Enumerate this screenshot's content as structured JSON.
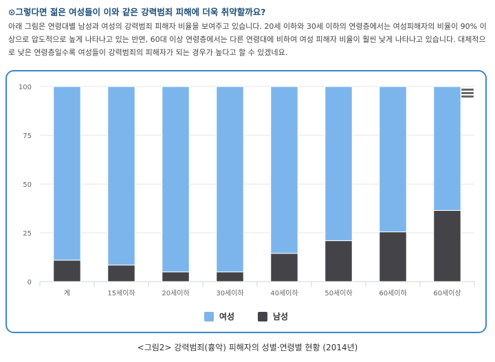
{
  "heading": "⊙그렇다면 젊은 여성들이 이와 같은 강력범죄 피해에 더욱 취약할까요?",
  "intro": "아래 그림은 연령대별 남성과 여성의 강력범죄 피해자 비율을 보여주고 있습니다. 20세 이하와 30세 이하의 연령층에서는 여성피해자의 비율이 90% 이상으로 압도적으로 높게 나타나고 있는 반면, 60대 이상 연령층에서는 다른 연령대에 비하여 여성 피해자 비율이 훨씬 낮게 나타나고 있습니다. 대체적으로 낮은 연령층일수록 여성들이 강력범죄의 피해자가 되는 경우가 높다고 할 수 있겠네요.",
  "caption": "<그림2> 강력범죄(흉악) 피해자의 성별·연령별 현황 (2014년)",
  "menu_icon": "hamburger-menu-icon",
  "colors": {
    "female": "#7cb5ec",
    "male": "#434348",
    "grid": "#e6e6e6",
    "axis": "#ccd6eb",
    "text": "#666666"
  },
  "chart_data": {
    "type": "bar",
    "stacked": true,
    "categories": [
      "계",
      "15세이하",
      "20세이하",
      "30세이하",
      "40세이하",
      "50세이하",
      "60세이하",
      "60세이상"
    ],
    "series": [
      {
        "name": "남성",
        "color": "#434348",
        "values": [
          11,
          8.5,
          5,
          5,
          14.5,
          21,
          25.5,
          36.5
        ]
      },
      {
        "name": "여성",
        "color": "#7cb5ec",
        "values": [
          89,
          91.5,
          95,
          95,
          85.5,
          79,
          74.5,
          63.5
        ]
      }
    ],
    "legend_order": [
      "여성",
      "남성"
    ],
    "yticks": [
      0,
      25,
      50,
      75,
      100
    ],
    "ylim": [
      0,
      100
    ],
    "legend_position": "bottom-center",
    "grid": true
  }
}
